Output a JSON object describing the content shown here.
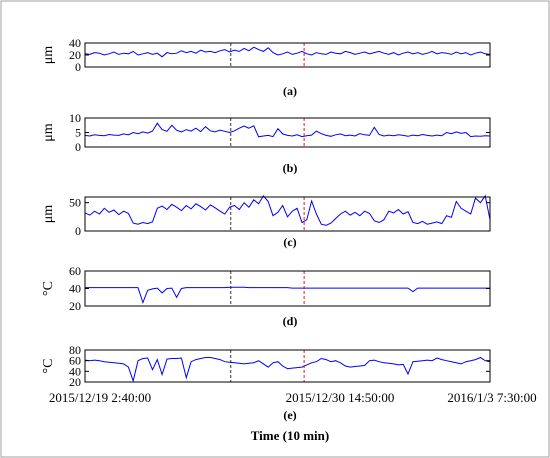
{
  "chart_data": [
    {
      "id": "a",
      "type": "line",
      "caption": "(a)",
      "ylabel": "μm",
      "ylim": [
        0,
        40
      ],
      "yticks": [
        0,
        20,
        40
      ],
      "series": [
        {
          "color": "#0000ff",
          "values": [
            22,
            21,
            24,
            23,
            20,
            22,
            25,
            21,
            23,
            22,
            26,
            20,
            22,
            24,
            21,
            23,
            17,
            24,
            22,
            23,
            27,
            24,
            26,
            23,
            28,
            25,
            26,
            24,
            27,
            29,
            25,
            28,
            26,
            31,
            27,
            33,
            29,
            26,
            32,
            24,
            20,
            22,
            25,
            21,
            23,
            26,
            22,
            20,
            24,
            22,
            21,
            25,
            23,
            22,
            26,
            24,
            21,
            23,
            25,
            22,
            24,
            26,
            23,
            21,
            24,
            20,
            23,
            25,
            22,
            24,
            21,
            23,
            26,
            22,
            24,
            23,
            21,
            25,
            22,
            24,
            20,
            23,
            25,
            22,
            21
          ]
        }
      ]
    },
    {
      "id": "b",
      "type": "line",
      "caption": "(b)",
      "ylabel": "μm",
      "ylim": [
        0,
        10
      ],
      "yticks": [
        0,
        5,
        10
      ],
      "series": [
        {
          "color": "#0000ff",
          "values": [
            4,
            3.8,
            4.2,
            4,
            3.9,
            4.3,
            4.1,
            4,
            4.5,
            4.2,
            5,
            4.6,
            5.2,
            4.8,
            5.5,
            8.2,
            6,
            5.4,
            7.5,
            5.8,
            5.2,
            6,
            5.5,
            6.5,
            5.3,
            7,
            5.6,
            5.2,
            5.8,
            5.4,
            5,
            5.6,
            6.5,
            7.2,
            6.5,
            7.3,
            3.5,
            3.8,
            4,
            3.6,
            6.3,
            4.5,
            4,
            3.8,
            4.2,
            3.6,
            3.9,
            4.1,
            5.5,
            4.6,
            4,
            3.7,
            4.2,
            4.5,
            3.9,
            4.1,
            3.8,
            4.6,
            4.2,
            4,
            6.8,
            4.3,
            3.8,
            4.1,
            3.9,
            4.2,
            4,
            3.7,
            4.1,
            3.9,
            4.3,
            4,
            3.8,
            4.1,
            3.9,
            5,
            4.6,
            5.2,
            4.7,
            5,
            3.6,
            3.8,
            3.7,
            3.9,
            3.8
          ]
        }
      ]
    },
    {
      "id": "c",
      "type": "line",
      "caption": "(c)",
      "ylabel": "μm",
      "ylim": [
        0,
        60
      ],
      "yticks": [
        0,
        50
      ],
      "series": [
        {
          "color": "#0000ff",
          "values": [
            32,
            28,
            35,
            30,
            40,
            33,
            37,
            29,
            35,
            31,
            14,
            12,
            15,
            13,
            16,
            40,
            44,
            38,
            47,
            42,
            36,
            45,
            39,
            48,
            43,
            37,
            46,
            41,
            35,
            30,
            42,
            45,
            38,
            50,
            42,
            55,
            48,
            62,
            52,
            27,
            33,
            45,
            25,
            35,
            40,
            15,
            20,
            53,
            30,
            12,
            10,
            14,
            22,
            30,
            35,
            28,
            33,
            27,
            35,
            31,
            18,
            15,
            20,
            35,
            32,
            38,
            30,
            34,
            15,
            13,
            17,
            12,
            14,
            16,
            13,
            27,
            24,
            52,
            40,
            35,
            30,
            58,
            50,
            62,
            20
          ]
        }
      ]
    },
    {
      "id": "d",
      "type": "line",
      "caption": "(d)",
      "ylabel": "°C",
      "ylim": [
        20,
        60
      ],
      "yticks": [
        20,
        40,
        60
      ],
      "series": [
        {
          "color": "#0000ff",
          "values": [
            41,
            41,
            41,
            41,
            41,
            41,
            41,
            41,
            41,
            41,
            41,
            41,
            24,
            38,
            39.5,
            40.5,
            35,
            40,
            40.5,
            30,
            40,
            41,
            41,
            41,
            41,
            41,
            41,
            41,
            41,
            41,
            41.5,
            41.5,
            41.5,
            41.5,
            41,
            41,
            41,
            41,
            41,
            41,
            41,
            41,
            41,
            40.5,
            40.5,
            40.5,
            40.5,
            40.5,
            40.5,
            40.5,
            40.5,
            40.5,
            40.5,
            40.5,
            40.5,
            40.5,
            40.5,
            40.5,
            40.5,
            40.5,
            40.5,
            40.5,
            40.5,
            40.5,
            40.5,
            40.5,
            40.5,
            40.5,
            36.5,
            40.5,
            40.5,
            40.5,
            40.5,
            40.5,
            40.5,
            40.5,
            40.5,
            40.5,
            40.5,
            40.5,
            40.5,
            40.5,
            40.5,
            40.5,
            40.5
          ]
        }
      ]
    },
    {
      "id": "e",
      "type": "line",
      "caption": "(e)",
      "ylabel": "°C",
      "ylim": [
        20,
        80
      ],
      "yticks": [
        20,
        40,
        60,
        80
      ],
      "xticklabels": [
        "2015/12/19 2:40:00",
        "2015/12/30 14:50:00",
        "2016/1/3 7:30:00"
      ],
      "xlabel": "Time (10 min)",
      "series": [
        {
          "color": "#0000ff",
          "values": [
            61,
            60,
            61,
            60,
            58,
            57,
            56,
            55,
            54,
            48,
            22,
            60,
            64,
            65,
            43,
            62,
            34,
            63,
            64,
            64,
            65,
            28,
            58,
            62,
            64,
            66,
            66,
            64,
            62,
            58,
            57,
            56,
            55,
            54,
            55,
            56,
            60,
            54,
            48,
            56,
            58,
            50,
            45,
            46,
            47,
            48,
            52,
            56,
            58,
            64,
            62,
            58,
            60,
            56,
            50,
            48,
            49,
            50,
            51,
            60,
            61,
            58,
            56,
            55,
            54,
            52,
            53,
            35,
            58,
            59,
            60,
            61,
            60,
            65,
            62,
            60,
            58,
            56,
            54,
            58,
            60,
            62,
            66,
            60,
            58
          ]
        }
      ]
    }
  ]
}
